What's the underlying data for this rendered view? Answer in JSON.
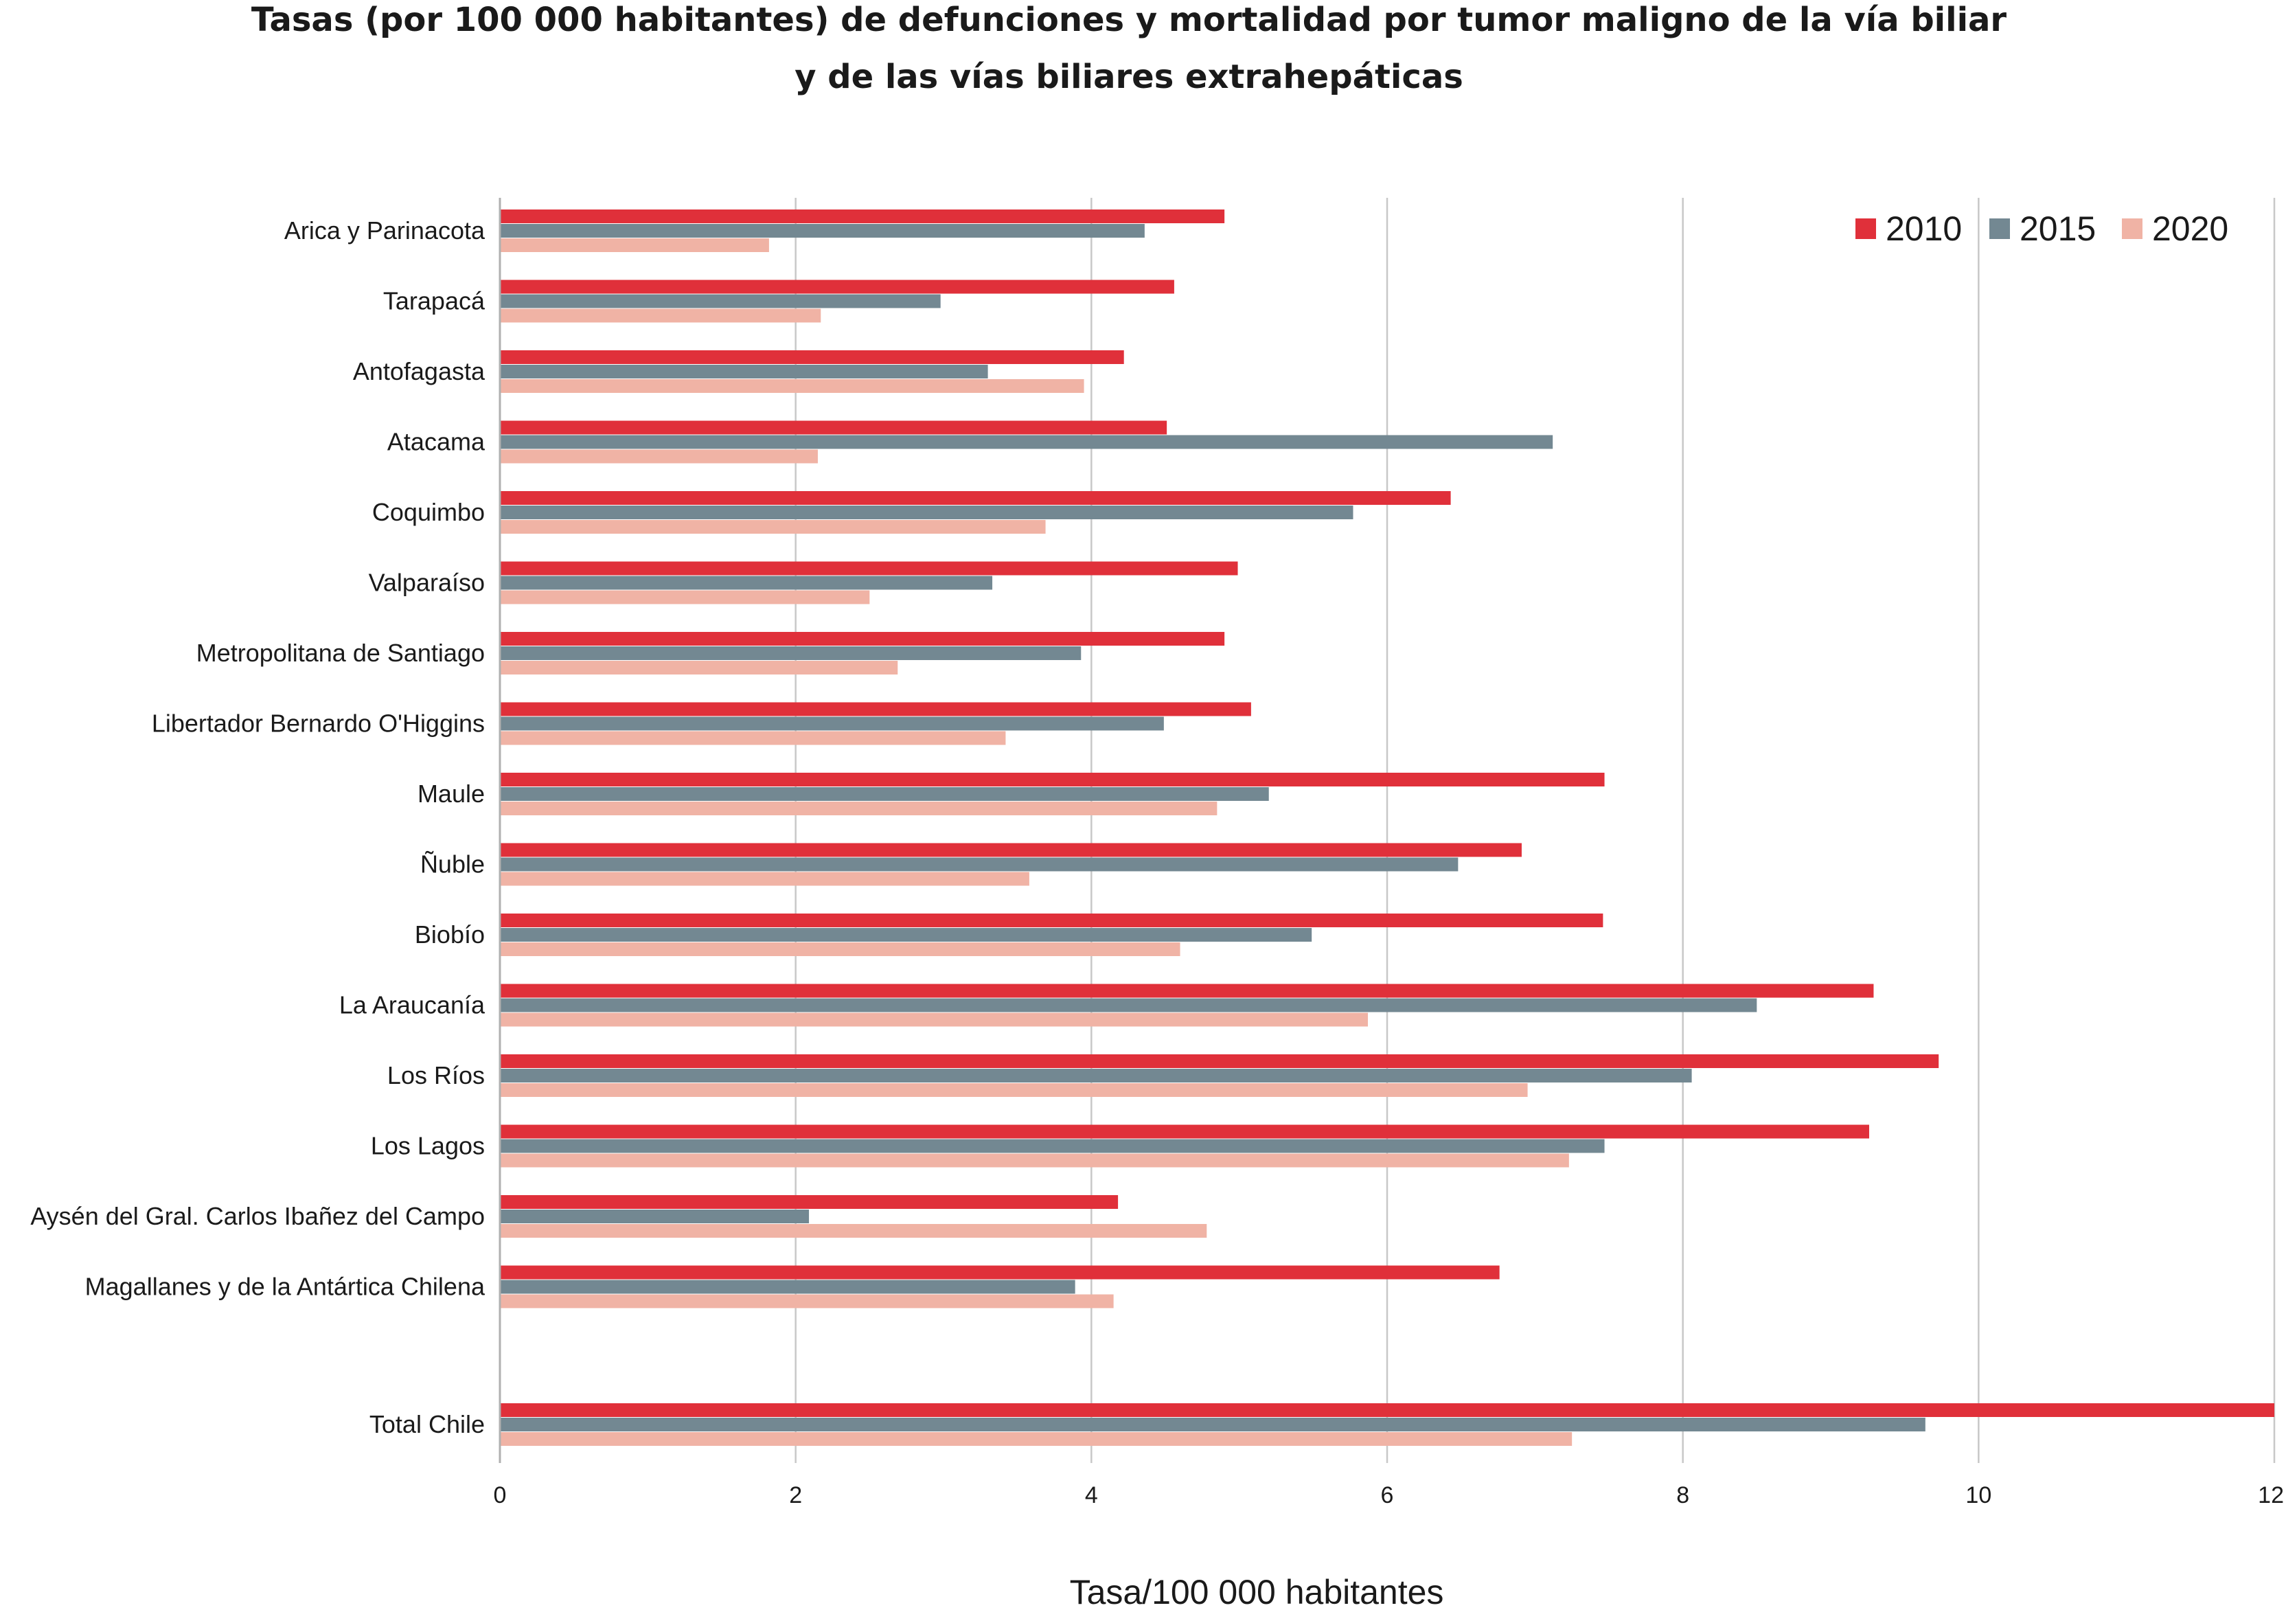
{
  "chart_data": {
    "type": "bar",
    "orientation": "horizontal",
    "title": "Tasas (por 100 000 habitantes) de defunciones y mortalidad por tumor maligno de la vía biliar y de las vías biliares extrahepáticas",
    "title_lines": [
      "Tasas (por 100 000 habitantes) de defunciones y mortalidad por tumor maligno de la vía biliar",
      "y de las vías biliares extrahepáticas"
    ],
    "xlabel": "Tasa/100 000 habitantes",
    "ylabel": "",
    "xlim": [
      0,
      12
    ],
    "xticks": [
      0,
      2,
      4,
      6,
      8,
      10,
      12
    ],
    "grid": true,
    "legend_position": "top-right",
    "categories": [
      "Arica y Parinacota",
      "Tarapacá",
      "Antofagasta",
      "Atacama",
      "Coquimbo",
      "Valparaíso",
      "Metropolitana de Santiago",
      "Libertador Bernardo O'Higgins",
      "Maule",
      "Ñuble",
      "Biobío",
      "La Araucanía",
      "Los Ríos",
      "Los Lagos",
      "Aysén del Gral. Carlos Ibañez del Campo",
      "Magallanes y de la Antártica Chilena",
      "Total Chile"
    ],
    "series": [
      {
        "name": "2010",
        "color": "#e0303a",
        "values": [
          4.9,
          4.56,
          4.22,
          4.51,
          6.43,
          4.99,
          4.9,
          5.08,
          7.47,
          6.91,
          7.46,
          9.29,
          9.73,
          9.26,
          4.18,
          6.76,
          12.0
        ]
      },
      {
        "name": "2015",
        "color": "#738892",
        "values": [
          4.36,
          2.98,
          3.3,
          7.12,
          5.77,
          3.33,
          3.93,
          4.49,
          5.2,
          6.48,
          5.49,
          8.5,
          8.06,
          7.47,
          2.09,
          3.89,
          9.64
        ]
      },
      {
        "name": "2020",
        "color": "#f0b3a5",
        "values": [
          1.82,
          2.17,
          3.95,
          2.15,
          3.69,
          2.5,
          2.69,
          3.42,
          4.85,
          3.58,
          4.6,
          5.87,
          6.95,
          7.23,
          4.78,
          4.15,
          7.25
        ]
      }
    ]
  }
}
